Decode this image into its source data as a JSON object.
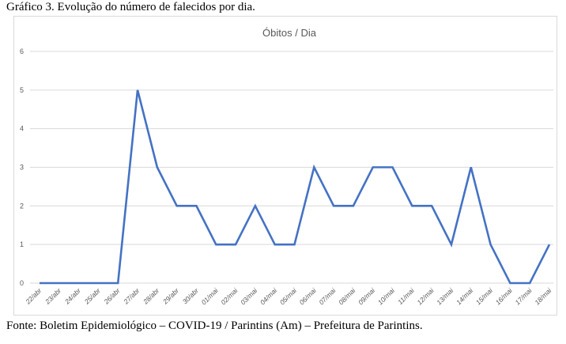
{
  "figure": {
    "caption": "Gráfico 3. Evolução do número de falecidos por dia.",
    "source": "Fonte: Boletim Epidemiológico – COVID-19 / Parintins (Am) – Prefeitura de Parintins."
  },
  "chart_data": {
    "type": "line",
    "title": "Óbitos / Dia",
    "xlabel": "",
    "ylabel": "",
    "categories": [
      "22/abr",
      "23/abr",
      "24/abr",
      "25/abr",
      "26/abr",
      "27/abr",
      "28/abr",
      "29/abr",
      "30/abr",
      "01/mai",
      "02/mai",
      "03/mai",
      "04/mai",
      "05/mai",
      "06/mai",
      "07/mai",
      "08/mai",
      "09/mai",
      "10/mai",
      "11/mai",
      "12/mai",
      "13/mai",
      "14/mai",
      "15/mai",
      "16/mai",
      "17/mai",
      "18/mai"
    ],
    "values": [
      0,
      0,
      0,
      0,
      0,
      5,
      3,
      2,
      2,
      1,
      1,
      2,
      1,
      1,
      3,
      2,
      2,
      3,
      3,
      2,
      2,
      1,
      3,
      1,
      0,
      0,
      1
    ],
    "ylim": [
      0,
      6
    ],
    "yticks": [
      0,
      1,
      2,
      3,
      4,
      5,
      6
    ],
    "grid": true,
    "line_color": "#4472c4",
    "grid_color": "#d9d9d9"
  }
}
